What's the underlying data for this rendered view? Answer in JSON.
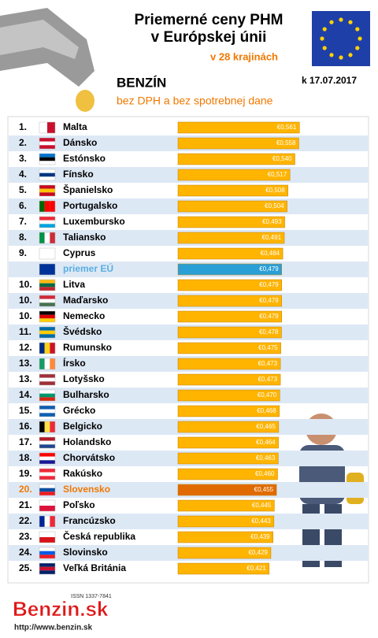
{
  "header": {
    "title_lines": [
      "Priemerné ceny PHM",
      "v Európskej únii"
    ],
    "subtitle": "v 28 krajinách",
    "date": "k 17.07.2017",
    "fuel": "BENZÍN",
    "note": "bez DPH a bez spotrebnej dane"
  },
  "chart_data": {
    "type": "bar",
    "orientation": "horizontal",
    "ranks": [
      "1.",
      "2.",
      "3.",
      "4.",
      "5.",
      "6.",
      "7.",
      "8.",
      "9.",
      null,
      "10.",
      "10.",
      "10.",
      "11.",
      "12.",
      "13.",
      "13.",
      "14.",
      "15.",
      "16.",
      "17.",
      "18.",
      "19.",
      "20.",
      "21.",
      "22.",
      "23.",
      "24.",
      "25."
    ],
    "categories": [
      "Malta",
      "Dánsko",
      "Estónsko",
      "Fínsko",
      "Španielsko",
      "Portugalsko",
      "Luxembursko",
      "Taliansko",
      "Cyprus",
      "priemer EÚ",
      "Litva",
      "Maďarsko",
      "Nemecko",
      "Švédsko",
      "Rumunsko",
      "Írsko",
      "Lotyšsko",
      "Bulharsko",
      "Grécko",
      "Belgicko",
      "Holandsko",
      "Chorvátsko",
      "Rakúsko",
      "Slovensko",
      "Poľsko",
      "Francúzsko",
      "Česká republika",
      "Slovinsko",
      "Veľká Británia"
    ],
    "values": [
      0.561,
      0.558,
      0.54,
      0.517,
      0.508,
      0.504,
      0.493,
      0.491,
      0.484,
      0.479,
      0.479,
      0.479,
      0.479,
      0.478,
      0.475,
      0.473,
      0.473,
      0.47,
      0.468,
      0.465,
      0.464,
      0.463,
      0.46,
      0.455,
      0.445,
      0.443,
      0.439,
      0.429,
      0.421
    ],
    "value_labels": [
      "€0,561",
      "€0,558",
      "€0,540",
      "€0,517",
      "€0,508",
      "€0,504",
      "€0,493",
      "€0,491",
      "€0,484",
      "€0,479",
      "€0,479",
      "€0,479",
      "€0,479",
      "€0,478",
      "€0,475",
      "€0,473",
      "€0,473",
      "€0,470",
      "€0,468",
      "€0,465",
      "€0,464",
      "€0,463",
      "€0,460",
      "€0,455",
      "€0,445",
      "€0,443",
      "€0,439",
      "€0,429",
      "€0,421"
    ],
    "colors": [
      "#ffb400",
      "#ffb400",
      "#ffb400",
      "#ffb400",
      "#ffb400",
      "#ffb400",
      "#ffb400",
      "#ffb400",
      "#ffb400",
      "#2a9fd6",
      "#ffb400",
      "#ffb400",
      "#ffb400",
      "#ffb400",
      "#ffb400",
      "#ffb400",
      "#ffb400",
      "#ffb400",
      "#ffb400",
      "#ffb400",
      "#ffb400",
      "#ffb400",
      "#ffb400",
      "#e06a00",
      "#ffb400",
      "#ffb400",
      "#ffb400",
      "#ffb400",
      "#ffb400"
    ],
    "label_colors": [
      "#000",
      "#000",
      "#000",
      "#000",
      "#000",
      "#000",
      "#000",
      "#000",
      "#000",
      "#5aaee0",
      "#000",
      "#000",
      "#000",
      "#000",
      "#000",
      "#000",
      "#000",
      "#000",
      "#000",
      "#000",
      "#000",
      "#000",
      "#000",
      "#f07800",
      "#000",
      "#000",
      "#000",
      "#000",
      "#000"
    ],
    "xlim": [
      0,
      0.6
    ]
  },
  "footer": {
    "issn": "ISSN 1337-7841",
    "logo": "Benzin.sk",
    "url": "http://www.benzin.sk"
  }
}
